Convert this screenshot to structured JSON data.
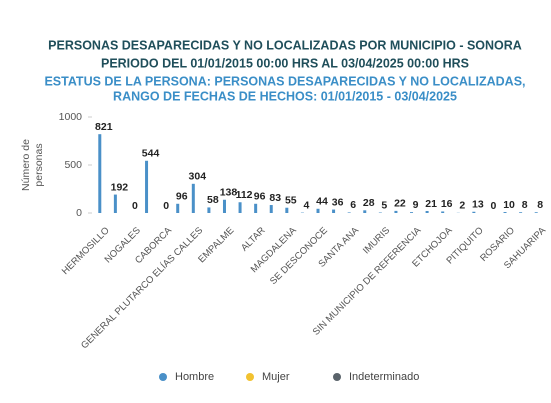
{
  "chart_data": {
    "type": "bar",
    "title": "PERSONAS DESAPARECIDAS Y NO LOCALIZADAS POR MUNICIPIO - SONORA",
    "subtitle": "PERIODO DEL 01/01/2015 00:00 HRS AL 03/04/2025 00:00 HRS",
    "filter_lines": [
      "ESTATUS DE LA PERSONA: PERSONAS DESAPARECIDAS Y NO LOCALIZADAS,",
      "RANGO DE FECHAS DE HECHOS: 01/01/2015 - 03/04/2025"
    ],
    "y_label": [
      "Número de",
      "personas"
    ],
    "categories": [
      "HERMOSILLO",
      null,
      "NOGALES",
      null,
      "CABORCA",
      null,
      "GENERAL PLUTARCO ELÍAS CALLES",
      null,
      "EMPALME",
      null,
      "ALTAR",
      null,
      "MAGDALENA",
      null,
      "SE DESCONOCE",
      null,
      "SANTA ANA",
      null,
      "IMURIS",
      null,
      "SIN MUNICIPIO DE REFERENCIA",
      null,
      "ETCHOJOA",
      null,
      "PITIQUITO",
      null,
      "ROSARIO",
      null,
      "SAHUARIPA"
    ],
    "series": [
      {
        "name": "Hombre",
        "color": "#4a90c8",
        "values": [
          821,
          192,
          0,
          544,
          0,
          96,
          304,
          58,
          138,
          112,
          96,
          83,
          55,
          4,
          44,
          36,
          6,
          28,
          5,
          22,
          9,
          21,
          16,
          2,
          13,
          0,
          10,
          8,
          8
        ]
      },
      {
        "name": "Mujer",
        "color": "#f2c230",
        "values": [
          0,
          0,
          0,
          0,
          0,
          0,
          0,
          0,
          0,
          0,
          0,
          0,
          0,
          0,
          0,
          0,
          0,
          0,
          0,
          0,
          0,
          0,
          0,
          0,
          0,
          0,
          0,
          0,
          0
        ]
      },
      {
        "name": "Indeterminado",
        "color": "#5a636b",
        "values": [
          0,
          0,
          0,
          0,
          0,
          0,
          0,
          0,
          0,
          0,
          0,
          0,
          0,
          0,
          0,
          0,
          0,
          0,
          0,
          0,
          0,
          0,
          0,
          0,
          0,
          0,
          0,
          0,
          0
        ]
      }
    ],
    "ylim": [
      0,
      1000
    ],
    "yticks": [
      0,
      500,
      1000
    ]
  }
}
